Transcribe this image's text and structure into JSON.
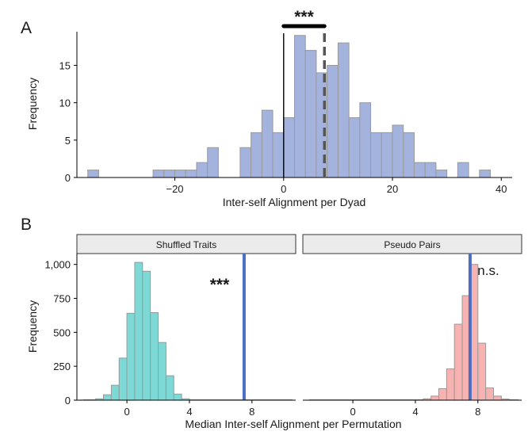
{
  "chart_data": [
    {
      "panel": "A",
      "type": "bar",
      "subtype": "histogram",
      "xlabel": "Inter-self Alignment per Dyad",
      "ylabel": "Frequency",
      "xlim": [
        -38,
        42
      ],
      "ylim": [
        0,
        19.5
      ],
      "xticks": [
        -20,
        0,
        20,
        40
      ],
      "yticks": [
        0,
        5,
        10,
        15
      ],
      "bin_width": 2,
      "fill": "#a3b3dd",
      "stroke": "#9a9a9a",
      "bins": [
        {
          "x0": -36,
          "count": 1
        },
        {
          "x0": -34,
          "count": 0
        },
        {
          "x0": -32,
          "count": 0
        },
        {
          "x0": -30,
          "count": 0
        },
        {
          "x0": -28,
          "count": 0
        },
        {
          "x0": -26,
          "count": 0
        },
        {
          "x0": -24,
          "count": 1
        },
        {
          "x0": -22,
          "count": 1
        },
        {
          "x0": -20,
          "count": 1
        },
        {
          "x0": -18,
          "count": 1
        },
        {
          "x0": -16,
          "count": 2
        },
        {
          "x0": -14,
          "count": 4
        },
        {
          "x0": -12,
          "count": 0
        },
        {
          "x0": -10,
          "count": 0
        },
        {
          "x0": -8,
          "count": 4
        },
        {
          "x0": -6,
          "count": 6
        },
        {
          "x0": -4,
          "count": 9
        },
        {
          "x0": -2,
          "count": 6
        },
        {
          "x0": 0,
          "count": 8
        },
        {
          "x0": 2,
          "count": 19
        },
        {
          "x0": 4,
          "count": 17
        },
        {
          "x0": 6,
          "count": 14
        },
        {
          "x0": 8,
          "count": 15
        },
        {
          "x0": 10,
          "count": 18
        },
        {
          "x0": 12,
          "count": 8
        },
        {
          "x0": 14,
          "count": 10
        },
        {
          "x0": 16,
          "count": 6
        },
        {
          "x0": 18,
          "count": 6
        },
        {
          "x0": 20,
          "count": 7
        },
        {
          "x0": 22,
          "count": 6
        },
        {
          "x0": 24,
          "count": 2
        },
        {
          "x0": 26,
          "count": 2
        },
        {
          "x0": 28,
          "count": 1
        },
        {
          "x0": 30,
          "count": 0
        },
        {
          "x0": 32,
          "count": 2
        },
        {
          "x0": 34,
          "count": 0
        },
        {
          "x0": 36,
          "count": 1
        }
      ],
      "reference_lines": [
        {
          "x": 0,
          "style": "solid",
          "color": "#000000"
        },
        {
          "x": 7.5,
          "style": "dashed",
          "color": "#555555"
        }
      ],
      "annotation": {
        "text": "***",
        "x_from": 0,
        "x_to": 7.5
      }
    },
    {
      "panel": "B",
      "type": "bar",
      "subtype": "histogram",
      "xlabel": "Median Inter-self Alignment per Permutation",
      "ylabel": "Frequency",
      "xlim": [
        -3.2,
        10.8
      ],
      "ylim": [
        0,
        1080
      ],
      "xticks": [
        0,
        4,
        8
      ],
      "yticks": [
        0,
        250,
        500,
        750,
        1000
      ],
      "bin_width": 0.5,
      "facets": [
        {
          "strip": "Shuffled Traits",
          "fill": "#7dd9d6",
          "bins": [
            {
              "x0": -3.0,
              "count": 1
            },
            {
              "x0": -2.5,
              "count": 3
            },
            {
              "x0": -2.0,
              "count": 10
            },
            {
              "x0": -1.5,
              "count": 40
            },
            {
              "x0": -1.0,
              "count": 110
            },
            {
              "x0": -0.5,
              "count": 310
            },
            {
              "x0": 0.0,
              "count": 640
            },
            {
              "x0": 0.5,
              "count": 1015
            },
            {
              "x0": 1.0,
              "count": 950
            },
            {
              "x0": 1.5,
              "count": 645
            },
            {
              "x0": 2.0,
              "count": 425
            },
            {
              "x0": 2.5,
              "count": 180
            },
            {
              "x0": 3.0,
              "count": 45
            },
            {
              "x0": 3.5,
              "count": 10
            },
            {
              "x0": 4.0,
              "count": 3
            },
            {
              "x0": 4.5,
              "count": 1
            },
            {
              "x0": 5.0,
              "count": 1
            }
          ],
          "reference_line": {
            "x": 7.5,
            "color": "#4e6fbf"
          },
          "annotation": "***"
        },
        {
          "strip": "Pseudo Pairs",
          "fill": "#f7b2b2",
          "bins": [
            {
              "x0": 4.0,
              "count": 2
            },
            {
              "x0": 4.5,
              "count": 10
            },
            {
              "x0": 5.0,
              "count": 30
            },
            {
              "x0": 5.5,
              "count": 85
            },
            {
              "x0": 6.0,
              "count": 230
            },
            {
              "x0": 6.5,
              "count": 560
            },
            {
              "x0": 7.0,
              "count": 770
            },
            {
              "x0": 7.5,
              "count": 1000
            },
            {
              "x0": 8.0,
              "count": 420
            },
            {
              "x0": 8.5,
              "count": 90
            },
            {
              "x0": 9.0,
              "count": 30
            },
            {
              "x0": 9.5,
              "count": 8
            },
            {
              "x0": 10.0,
              "count": 2
            }
          ],
          "reference_line": {
            "x": 7.5,
            "color": "#4e6fbf"
          },
          "annotation": "n.s."
        }
      ]
    }
  ]
}
